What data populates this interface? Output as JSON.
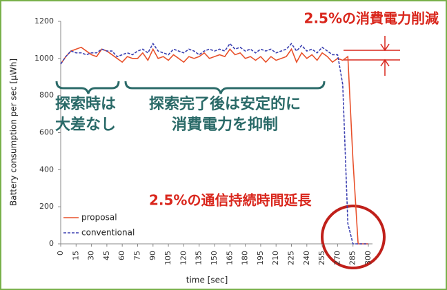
{
  "chart_data": {
    "type": "line",
    "x": [
      0,
      5,
      10,
      15,
      20,
      25,
      30,
      35,
      40,
      45,
      50,
      55,
      60,
      65,
      70,
      75,
      80,
      85,
      90,
      95,
      100,
      105,
      110,
      115,
      120,
      125,
      130,
      135,
      140,
      145,
      150,
      155,
      160,
      165,
      170,
      175,
      180,
      185,
      190,
      195,
      200,
      205,
      210,
      215,
      220,
      225,
      230,
      235,
      240,
      245,
      250,
      255,
      260,
      265,
      270,
      275,
      280,
      285,
      290,
      295,
      300
    ],
    "series": [
      {
        "name": "proposal",
        "color": "#e8502a",
        "dash": false,
        "values": [
          970,
          1010,
          1040,
          1050,
          1060,
          1040,
          1020,
          1010,
          1050,
          1040,
          1020,
          1000,
          980,
          1010,
          1000,
          1000,
          1030,
          990,
          1050,
          1000,
          1010,
          990,
          1020,
          1000,
          980,
          1010,
          1000,
          1010,
          1030,
          1000,
          1010,
          1020,
          1010,
          1050,
          1020,
          1030,
          1000,
          1010,
          990,
          1010,
          980,
          1010,
          990,
          1000,
          1010,
          1050,
          980,
          1030,
          1000,
          1020,
          990,
          1030,
          1010,
          980,
          1000,
          990,
          1010,
          450,
          0,
          0,
          0
        ]
      },
      {
        "name": "conventional",
        "color": "#3a3fb0",
        "dash": true,
        "values": [
          970,
          1010,
          1040,
          1030,
          1030,
          1020,
          1030,
          1030,
          1050,
          1040,
          1040,
          1010,
          1020,
          1030,
          1020,
          1040,
          1050,
          1030,
          1080,
          1040,
          1030,
          1020,
          1050,
          1040,
          1030,
          1050,
          1040,
          1020,
          1040,
          1050,
          1040,
          1050,
          1040,
          1080,
          1050,
          1060,
          1040,
          1050,
          1030,
          1050,
          1040,
          1050,
          1030,
          1040,
          1050,
          1080,
          1040,
          1070,
          1040,
          1050,
          1030,
          1060,
          1040,
          1020,
          1020,
          860,
          110,
          0,
          0,
          0,
          0
        ]
      }
    ],
    "xlim": [
      0,
      300
    ],
    "xticks": [
      0,
      15,
      30,
      45,
      60,
      75,
      90,
      105,
      120,
      135,
      150,
      165,
      180,
      195,
      210,
      225,
      240,
      255,
      270,
      285,
      300
    ],
    "ylim": [
      0,
      1200
    ],
    "yticks": [
      0,
      200,
      400,
      600,
      800,
      1000,
      1200
    ],
    "xlabel": "time [sec]",
    "ylabel": "Battery consumption per sec [μWh]",
    "grid": false,
    "legend": "lower left",
    "annotations": [
      "2.5%の消費電力削減",
      "探索時は",
      "大差なし",
      "探索完了後は安定的に",
      "消費電力を抑制",
      "2.5%の通信持続時間延長"
    ]
  }
}
